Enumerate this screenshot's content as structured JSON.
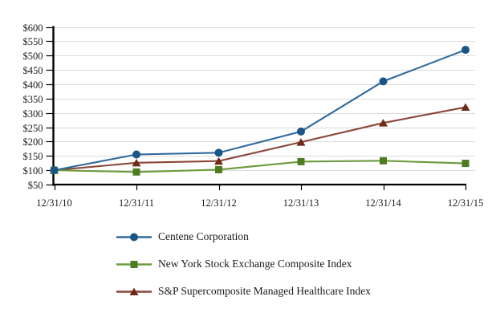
{
  "chart_data": {
    "type": "line",
    "title": "",
    "categories": [
      "12/31/10",
      "12/31/11",
      "12/31/12",
      "12/31/13",
      "12/31/14",
      "12/31/15"
    ],
    "series": [
      {
        "name": "Centene Corporation",
        "marker": "circle",
        "line_color": "#2E699E",
        "marker_color": "#1A5586",
        "values": [
          100,
          155,
          161,
          235,
          410,
          520
        ]
      },
      {
        "name": "New York Stock Exchange Composite Index",
        "marker": "square",
        "line_color": "#6D9B3D",
        "marker_color": "#4E7D21",
        "values": [
          100,
          94,
          102,
          130,
          133,
          124
        ]
      },
      {
        "name": "S&P Supercomposite Managed Healthcare Index",
        "marker": "triangle",
        "line_color": "#8A4737",
        "marker_color": "#6E2B17",
        "values": [
          100,
          126,
          132,
          198,
          265,
          320
        ]
      }
    ],
    "y_axis": {
      "min": 50,
      "max": 600,
      "step": 50,
      "tick_prefix": "$"
    },
    "x_axis": {
      "labels_visible": true
    },
    "grid": "horizontal",
    "legend_position": "bottom-left",
    "colors": {
      "gridline": "#DBDBDB",
      "axis": "#000000",
      "text": "#1A1A1A"
    }
  }
}
